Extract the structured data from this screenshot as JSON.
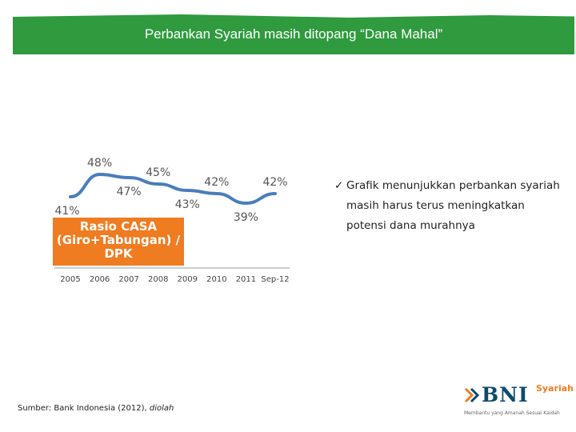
{
  "header": {
    "title": "Perbankan Syariah masih ditopang “Dana Mahal”"
  },
  "chart_data": {
    "type": "line",
    "categories": [
      "2005",
      "2006",
      "2007",
      "2008",
      "2009",
      "2010",
      "2011",
      "Sep-12"
    ],
    "series": [
      {
        "values": [
          41,
          48,
          47,
          45,
          43,
          42,
          39,
          42
        ]
      }
    ],
    "data_labels": [
      "41%",
      "48%",
      "47%",
      "45%",
      "43%",
      "42%",
      "39%",
      "42%"
    ],
    "ylim": [
      35,
      50
    ],
    "grid": false,
    "line_color": "#4a7ebb",
    "annotation": [
      "Rasio CASA",
      "(Giro+Tabungan) /",
      "DPK"
    ],
    "annotation_color": "#f07c22"
  },
  "bullet": {
    "check": "✓",
    "text": "Grafik  menunjukkan perbankan syariah masih harus terus meningkatkan potensi dana murahnya"
  },
  "source": {
    "text": "Sumber: Bank Indonesia (2012), ",
    "suffix": "diolah"
  },
  "logo": {
    "name": "BNI",
    "sub": "Syariah",
    "tagline": "Membantu yang Amanah Sesuai Kaidah"
  },
  "colors": {
    "banner": "#2f9a3e",
    "accent": "#f07c22",
    "line": "#4a7ebb"
  }
}
